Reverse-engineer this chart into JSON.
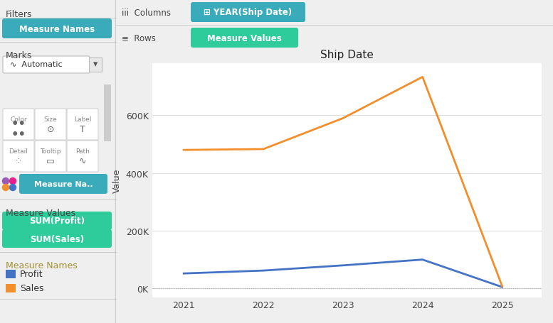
{
  "title": "Ship Date",
  "years": [
    2021,
    2022,
    2023,
    2024,
    2025
  ],
  "profit": [
    52000,
    62000,
    80000,
    100000,
    5000
  ],
  "sales": [
    480000,
    483000,
    590000,
    733000,
    8000
  ],
  "profit_color": "#4472C4",
  "sales_color": "#F28E2B",
  "ylabel": "Value",
  "ytick_labels": [
    "0K",
    "200K",
    "400K",
    "600K"
  ],
  "ytick_values": [
    0,
    200000,
    400000,
    600000
  ],
  "bg_color": "#EFEFEF",
  "panel_bg": "#F4F4F4",
  "chart_bg": "#FFFFFF",
  "teal_filter": "#3AABBA",
  "teal_marks": "#3AABBA",
  "green_pill": "#2ECC9A",
  "col_pill_color": "#3AABBA",
  "row_pill_color": "#2ECC9A",
  "header_bg": "#F4F4F4",
  "divider_color": "#CCCCCC",
  "text_dark": "#444444",
  "text_label": "#888888"
}
